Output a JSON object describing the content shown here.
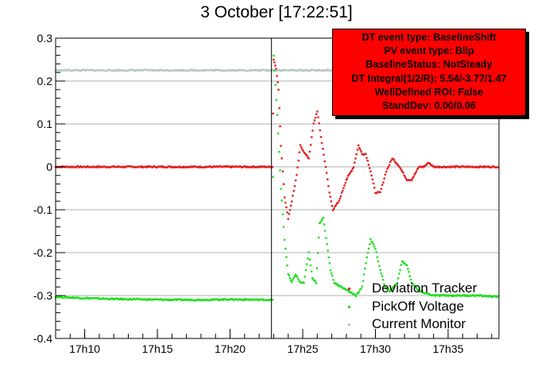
{
  "title": "3 October [17:22:51]",
  "info_box": {
    "background": "#ff0000",
    "lines": [
      "DT event type: BaselineShift",
      "PV event type: Blip",
      "BaselineStatus: NotSteady",
      "DT Integral(1/2/R): 5.54/-3.77/1.47",
      "WellDefined ROI: False",
      "StandDev: 0.00/0.06"
    ]
  },
  "legend": [
    {
      "name": "Deviation Tracker",
      "color": "#e02020"
    },
    {
      "name": "PickOff Voltage",
      "color": "#20e020"
    },
    {
      "name": "Current Monitor",
      "color": "#b8c8c4"
    }
  ],
  "chart_data": {
    "type": "scatter",
    "xlabel": "",
    "ylabel": "",
    "x_unit": "time (HH:MM)",
    "xlim": [
      "17:08:00",
      "17:38:30"
    ],
    "ylim": [
      -0.4,
      0.3
    ],
    "x_ticks": [
      "17h10",
      "17h15",
      "17h20",
      "17h25",
      "17h30",
      "17h35"
    ],
    "y_ticks": [
      "-0.4",
      "-0.3",
      "-0.2",
      "-0.1",
      "0",
      "0.1",
      "0.2",
      "0.3"
    ],
    "grid": "horizontal",
    "event_time": "17:22:51",
    "legend_placement": "bottom-right",
    "series": [
      {
        "name": "Deviation Tracker",
        "color": "#e02020",
        "points": [
          [
            "17:08:00",
            0.0
          ],
          [
            "17:10:00",
            0.0
          ],
          [
            "17:12:00",
            0.0
          ],
          [
            "17:14:00",
            0.0
          ],
          [
            "17:16:00",
            0.0
          ],
          [
            "17:18:00",
            0.0
          ],
          [
            "17:20:00",
            0.0
          ],
          [
            "17:22:40",
            0.0
          ],
          [
            "17:22:55",
            0.0
          ],
          [
            "17:23:00",
            0.25
          ],
          [
            "17:23:10",
            0.23
          ],
          [
            "17:23:20",
            0.18
          ],
          [
            "17:23:30",
            0.05
          ],
          [
            "17:23:45",
            -0.07
          ],
          [
            "17:24:00",
            -0.12
          ],
          [
            "17:24:15",
            -0.08
          ],
          [
            "17:24:35",
            -0.02
          ],
          [
            "17:24:50",
            0.05
          ],
          [
            "17:25:10",
            0.03
          ],
          [
            "17:25:25",
            0.02
          ],
          [
            "17:25:45",
            0.1
          ],
          [
            "17:26:00",
            0.13
          ],
          [
            "17:26:15",
            0.07
          ],
          [
            "17:26:35",
            0.0
          ],
          [
            "17:26:50",
            -0.06
          ],
          [
            "17:27:05",
            -0.1
          ],
          [
            "17:27:30",
            -0.08
          ],
          [
            "17:28:00",
            -0.03
          ],
          [
            "17:28:30",
            0.0
          ],
          [
            "17:28:50",
            0.05
          ],
          [
            "17:29:05",
            0.03
          ],
          [
            "17:29:20",
            0.03
          ],
          [
            "17:29:40",
            -0.01
          ],
          [
            "17:30:00",
            -0.06
          ],
          [
            "17:30:20",
            -0.06
          ],
          [
            "17:30:45",
            -0.01
          ],
          [
            "17:31:10",
            0.02
          ],
          [
            "17:31:40",
            0.0
          ],
          [
            "17:32:10",
            -0.03
          ],
          [
            "17:32:30",
            -0.03
          ],
          [
            "17:33:00",
            0.0
          ],
          [
            "17:33:20",
            0.0
          ],
          [
            "17:33:40",
            0.01
          ],
          [
            "17:34:00",
            0.0
          ],
          [
            "17:35:00",
            0.0
          ],
          [
            "17:36:00",
            0.0
          ],
          [
            "17:37:00",
            0.0
          ],
          [
            "17:38:30",
            0.0
          ]
        ]
      },
      {
        "name": "PickOff Voltage",
        "color": "#20e020",
        "points": [
          [
            "17:08:00",
            -0.303
          ],
          [
            "17:10:00",
            -0.306
          ],
          [
            "17:12:00",
            -0.308
          ],
          [
            "17:14:00",
            -0.309
          ],
          [
            "17:16:00",
            -0.31
          ],
          [
            "17:18:00",
            -0.31
          ],
          [
            "17:20:00",
            -0.309
          ],
          [
            "17:22:40",
            -0.31
          ],
          [
            "17:22:55",
            -0.31
          ],
          [
            "17:23:00",
            0.26
          ],
          [
            "17:23:15",
            0.12
          ],
          [
            "17:23:30",
            -0.05
          ],
          [
            "17:23:45",
            -0.17
          ],
          [
            "17:24:00",
            -0.25
          ],
          [
            "17:24:15",
            -0.27
          ],
          [
            "17:24:30",
            -0.25
          ],
          [
            "17:24:50",
            -0.27
          ],
          [
            "17:25:05",
            -0.27
          ],
          [
            "17:25:25",
            -0.2
          ],
          [
            "17:25:40",
            -0.26
          ],
          [
            "17:25:55",
            -0.27
          ],
          [
            "17:26:10",
            -0.13
          ],
          [
            "17:26:25",
            -0.12
          ],
          [
            "17:26:40",
            -0.18
          ],
          [
            "17:26:55",
            -0.24
          ],
          [
            "17:27:10",
            -0.27
          ],
          [
            "17:27:40",
            -0.28
          ],
          [
            "17:28:10",
            -0.29
          ],
          [
            "17:28:40",
            -0.3
          ],
          [
            "17:29:05",
            -0.28
          ],
          [
            "17:29:25",
            -0.21
          ],
          [
            "17:29:40",
            -0.17
          ],
          [
            "17:30:00",
            -0.19
          ],
          [
            "17:30:20",
            -0.24
          ],
          [
            "17:30:40",
            -0.28
          ],
          [
            "17:31:00",
            -0.29
          ],
          [
            "17:31:30",
            -0.27
          ],
          [
            "17:31:50",
            -0.22
          ],
          [
            "17:32:10",
            -0.23
          ],
          [
            "17:32:30",
            -0.27
          ],
          [
            "17:33:00",
            -0.29
          ],
          [
            "17:34:00",
            -0.3
          ],
          [
            "17:35:00",
            -0.3
          ],
          [
            "17:36:00",
            -0.3
          ],
          [
            "17:37:00",
            -0.3
          ],
          [
            "17:38:30",
            -0.303
          ]
        ]
      },
      {
        "name": "Current Monitor",
        "color": "#b8c8c4",
        "points": [
          [
            "17:08:00",
            0.225
          ],
          [
            "17:10:00",
            0.225
          ],
          [
            "17:12:00",
            0.225
          ],
          [
            "17:14:00",
            0.225
          ],
          [
            "17:16:00",
            0.225
          ],
          [
            "17:18:00",
            0.225
          ],
          [
            "17:20:00",
            0.225
          ],
          [
            "17:22:50",
            0.225
          ],
          [
            "17:24:00",
            0.225
          ],
          [
            "17:26:00",
            0.225
          ],
          [
            "17:28:00",
            0.225
          ],
          [
            "17:30:00",
            0.225
          ],
          [
            "17:32:00",
            0.225
          ],
          [
            "17:34:00",
            0.225
          ],
          [
            "17:36:00",
            0.225
          ],
          [
            "17:38:30",
            0.225
          ]
        ]
      }
    ]
  }
}
